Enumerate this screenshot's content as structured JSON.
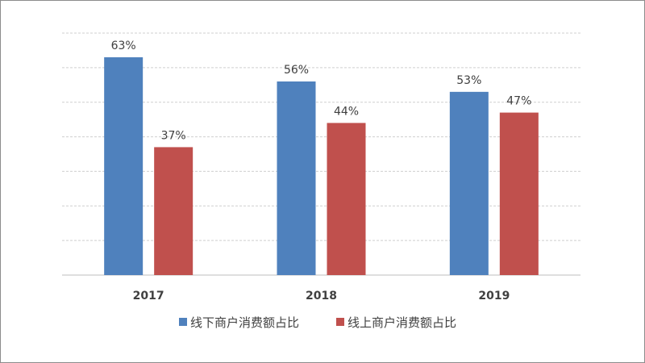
{
  "chart_data": {
    "type": "bar",
    "categories": [
      "2017",
      "2018",
      "2019"
    ],
    "series": [
      {
        "name": "线下商户消费额占比",
        "values": [
          63,
          56,
          53
        ],
        "labels": [
          "63%",
          "56%",
          "53%"
        ],
        "color": "#4f81bd"
      },
      {
        "name": "线上商户消费额占比",
        "values": [
          37,
          44,
          47
        ],
        "labels": [
          "37%",
          "44%",
          "47%"
        ],
        "color": "#c0504d"
      }
    ],
    "title": "",
    "xlabel": "",
    "ylabel": "",
    "ylim": [
      0,
      70
    ],
    "grid": true,
    "gridline_style": "dashed",
    "legend_position": "bottom"
  }
}
